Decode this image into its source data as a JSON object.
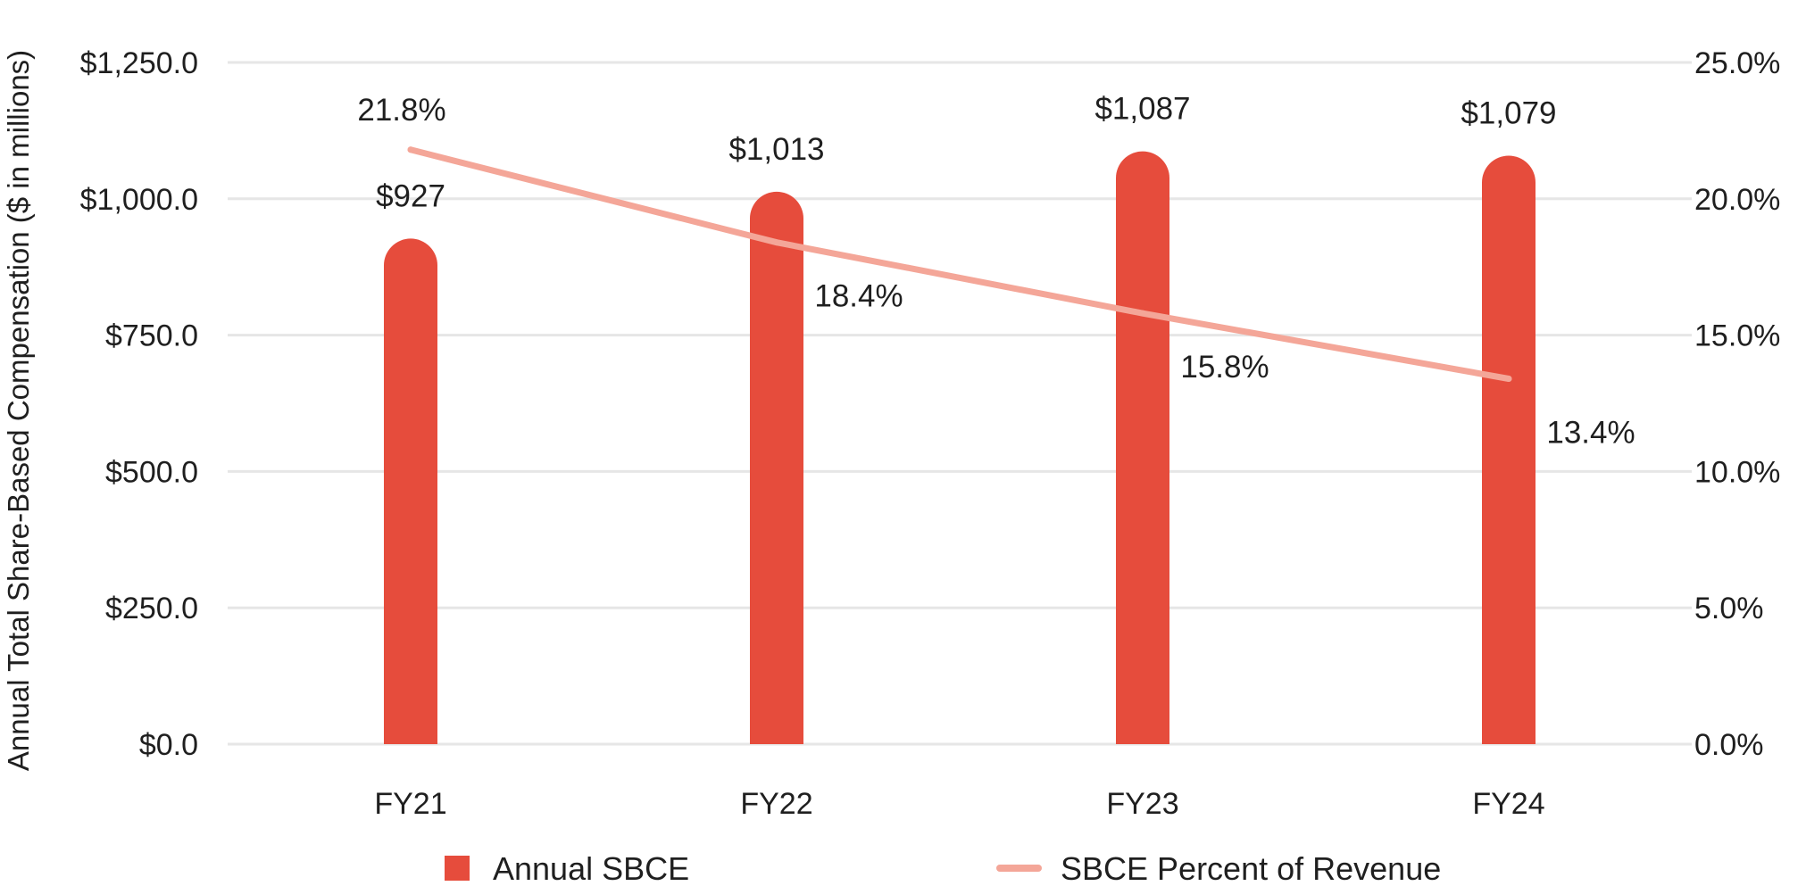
{
  "chart_data": {
    "type": "bar",
    "categories": [
      "FY21",
      "FY22",
      "FY23",
      "FY24"
    ],
    "series": [
      {
        "name": "Annual SBCE",
        "type": "bar",
        "axis": "left",
        "values": [
          927,
          1013,
          1087,
          1079
        ],
        "labels": [
          "$927",
          "$1,013",
          "$1,087",
          "$1,079"
        ],
        "color": "#e64c3c"
      },
      {
        "name": "SBCE Percent of Revenue",
        "type": "line",
        "axis": "right",
        "values": [
          21.8,
          18.4,
          15.8,
          13.4
        ],
        "labels": [
          "21.8%",
          "18.4%",
          "15.8%",
          "13.4%"
        ],
        "color": "#f4a698"
      }
    ],
    "ylabel": "Annual Total Share-Based Compensation ($ in millions)",
    "ylim": [
      0,
      1250
    ],
    "y2lim": [
      0,
      25
    ],
    "yticks": [
      0,
      250,
      500,
      750,
      1000,
      1250
    ],
    "ytick_labels": [
      "$0.0",
      "$250.0",
      "$500.0",
      "$750.0",
      "$1,000.0",
      "$1,250.0"
    ],
    "y2ticks": [
      0,
      5,
      10,
      15,
      20,
      25
    ],
    "y2tick_labels": [
      "0.0%",
      "5.0%",
      "10.0%",
      "15.0%",
      "20.0%",
      "25.0%"
    ],
    "grid": true,
    "legend_position": "bottom"
  }
}
